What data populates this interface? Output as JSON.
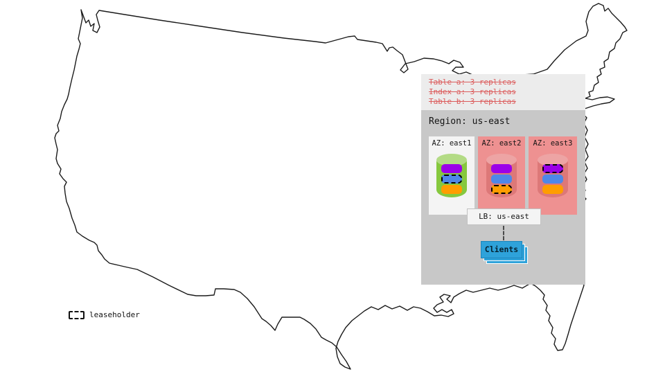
{
  "zone_config": {
    "lines": [
      "Table a: 3 replicas",
      "Index a: 3 replicas",
      "Table b: 3 replicas"
    ]
  },
  "region": {
    "title": "Region: us-east",
    "azs": [
      {
        "label": "AZ: east1",
        "cylinder": "green",
        "replicas": [
          {
            "color": "#9b00e8",
            "leaseholder": false
          },
          {
            "color": "#4e87e8",
            "leaseholder": true
          },
          {
            "color": "#ff9d00",
            "leaseholder": false
          }
        ]
      },
      {
        "label": "AZ: east2",
        "cylinder": "red",
        "replicas": [
          {
            "color": "#9b00e8",
            "leaseholder": false
          },
          {
            "color": "#4e87e8",
            "leaseholder": false
          },
          {
            "color": "#ff9d00",
            "leaseholder": true
          }
        ]
      },
      {
        "label": "AZ: east3",
        "cylinder": "red",
        "replicas": [
          {
            "color": "#9b00e8",
            "leaseholder": true
          },
          {
            "color": "#4e87e8",
            "leaseholder": false
          },
          {
            "color": "#ff9d00",
            "leaseholder": false
          }
        ]
      }
    ],
    "load_balancer": {
      "label": "LB: us-east"
    },
    "clients": {
      "label": "Clients"
    }
  },
  "legend": {
    "label": "leaseholder"
  },
  "colors": {
    "config_text": "#dc5c5c",
    "top_panel_bg": "#ececec",
    "region_panel_bg": "#c8c8c8",
    "az_default_bg": "#f4f4f4",
    "az_highlight_bg": "#ee9191",
    "cylinder_green": "#86c83e",
    "cylinder_red": "#dd7878",
    "replica_purple": "#9b00e8",
    "replica_blue": "#4e87e8",
    "replica_orange": "#ff9d00",
    "clients_blue": "#2ea2da",
    "map_stroke": "#1a1a1a"
  }
}
